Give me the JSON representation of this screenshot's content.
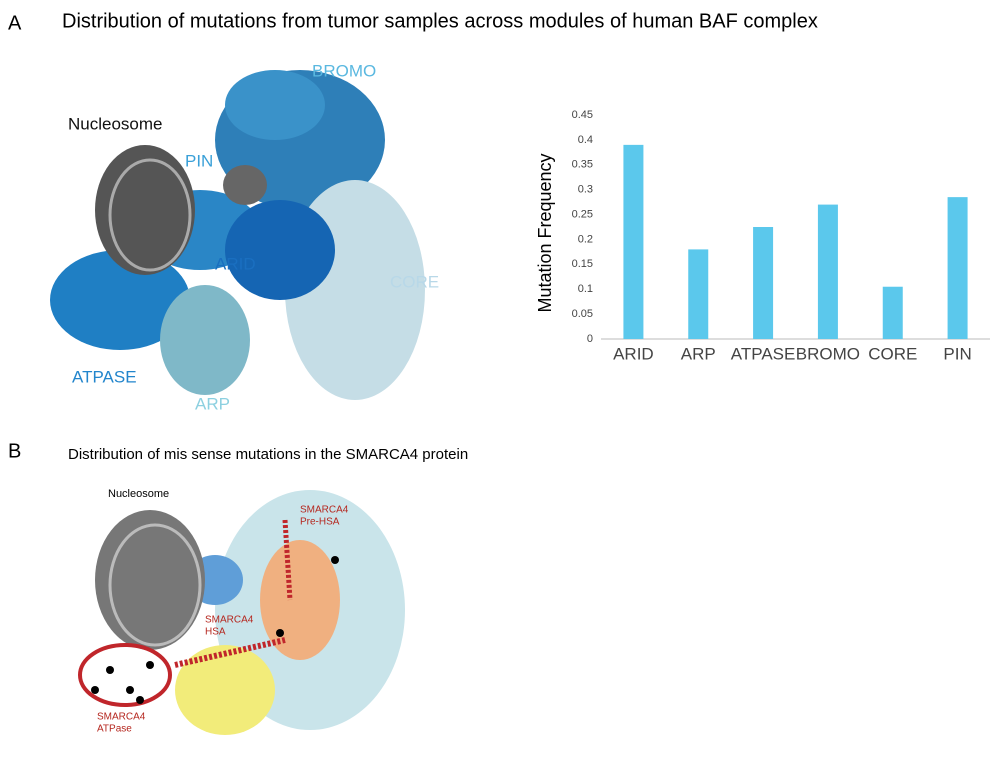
{
  "panel_a": {
    "label": "A",
    "title": "Distribution of mutations from tumor samples across modules of human BAF complex",
    "structure_labels": [
      "Nucleosome",
      "PIN",
      "BROMO",
      "ARID",
      "CORE",
      "ATPASE",
      "ARP"
    ]
  },
  "chart_data": {
    "type": "bar",
    "y_label": "Mutation Frequency",
    "categories": [
      "ARID",
      "ARP",
      "ATPASE",
      "BROMO",
      "CORE",
      "PIN"
    ],
    "values": [
      0.39,
      0.18,
      0.225,
      0.27,
      0.105,
      0.285
    ],
    "color": "#5bc8ec",
    "ylim": [
      0,
      0.45
    ],
    "yticks": [
      0,
      0.05,
      0.1,
      0.15,
      0.2,
      0.25,
      0.3,
      0.35,
      0.4,
      0.45
    ],
    "grid": false
  },
  "panel_b": {
    "label": "B",
    "title": "Distribution of mis sense mutations in the SMARCA4 protein",
    "nucleosome": "Nucleosome",
    "pre_hsa": [
      "SMARCA4",
      "Pre-HSA"
    ],
    "hsa": [
      "SMARCA4",
      "HSA"
    ],
    "atpase": [
      "SMARCA4",
      "ATPase"
    ]
  }
}
